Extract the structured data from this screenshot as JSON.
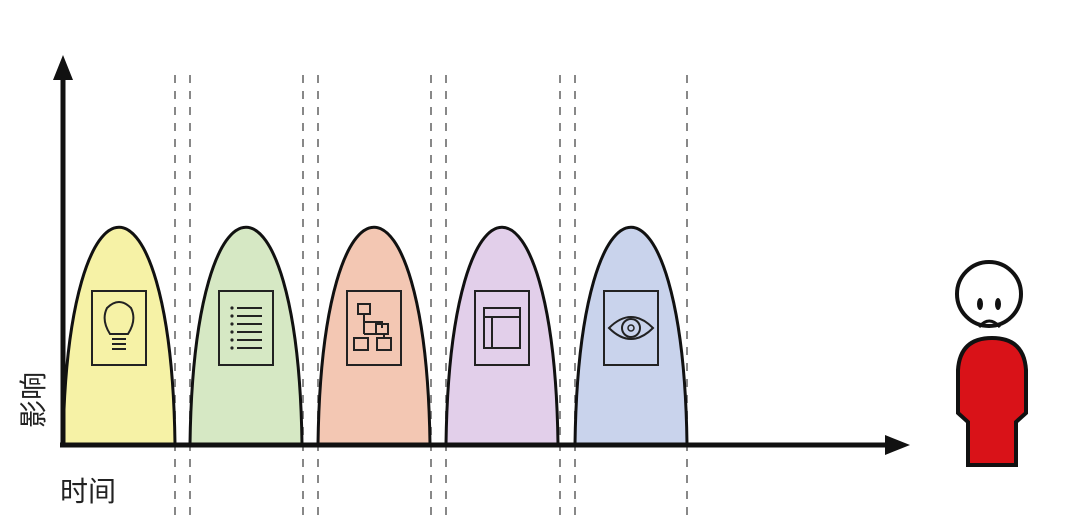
{
  "axes": {
    "y_label": "影响",
    "x_label": "时间"
  },
  "phases": [
    {
      "icon": "lightbulb-icon",
      "color": "#f6f2a6"
    },
    {
      "icon": "list-icon",
      "color": "#d6e8c4"
    },
    {
      "icon": "hierarchy-icon",
      "color": "#f3c7b3"
    },
    {
      "icon": "layout-icon",
      "color": "#e2cfea"
    },
    {
      "icon": "eye-icon",
      "color": "#c9d3ec"
    }
  ],
  "person": {
    "icon": "sad-person-icon",
    "body_color": "#d91218"
  }
}
